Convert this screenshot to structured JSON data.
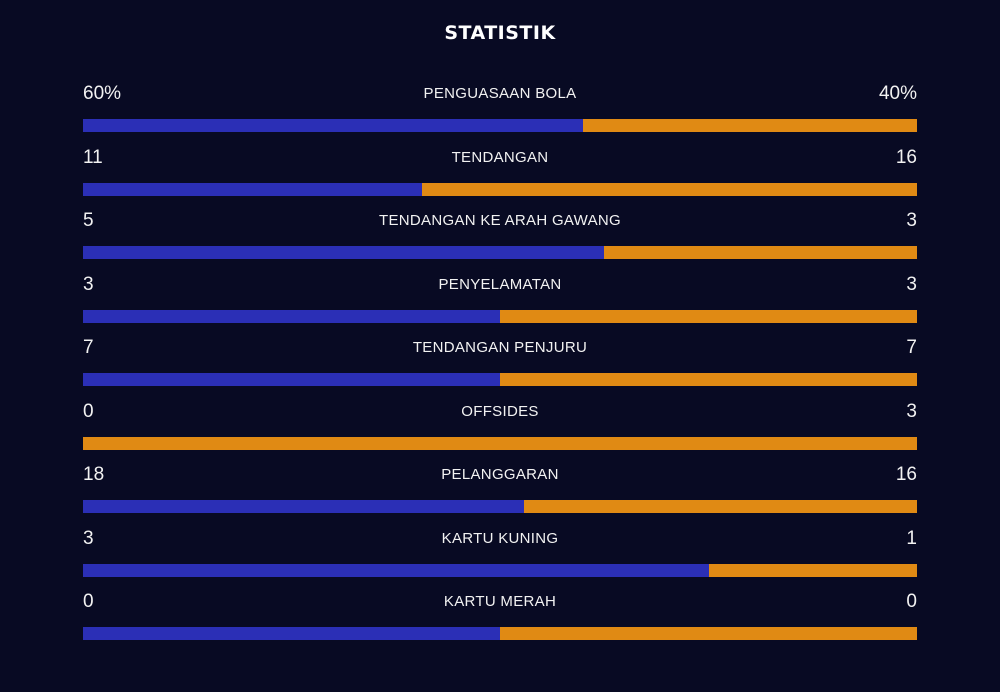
{
  "title": "STATISTIK",
  "colors": {
    "background": "#080a23",
    "home": "#2b2fb6",
    "away": "#e08a14"
  },
  "stats": [
    {
      "label": "PENGUASAAN BOLA",
      "home": "60%",
      "away": "40%",
      "home_share": 0.6
    },
    {
      "label": "TENDANGAN",
      "home": "11",
      "away": "16",
      "home_share": 0.407
    },
    {
      "label": "TENDANGAN KE ARAH GAWANG",
      "home": "5",
      "away": "3",
      "home_share": 0.625
    },
    {
      "label": "PENYELAMATAN",
      "home": "3",
      "away": "3",
      "home_share": 0.5
    },
    {
      "label": "TENDANGAN PENJURU",
      "home": "7",
      "away": "7",
      "home_share": 0.5
    },
    {
      "label": "OFFSIDES",
      "home": "0",
      "away": "3",
      "home_share": 0.0
    },
    {
      "label": "PELANGGARAN",
      "home": "18",
      "away": "16",
      "home_share": 0.529
    },
    {
      "label": "KARTU KUNING",
      "home": "3",
      "away": "1",
      "home_share": 0.75
    },
    {
      "label": "KARTU MERAH",
      "home": "0",
      "away": "0",
      "home_share": 0.5
    }
  ]
}
